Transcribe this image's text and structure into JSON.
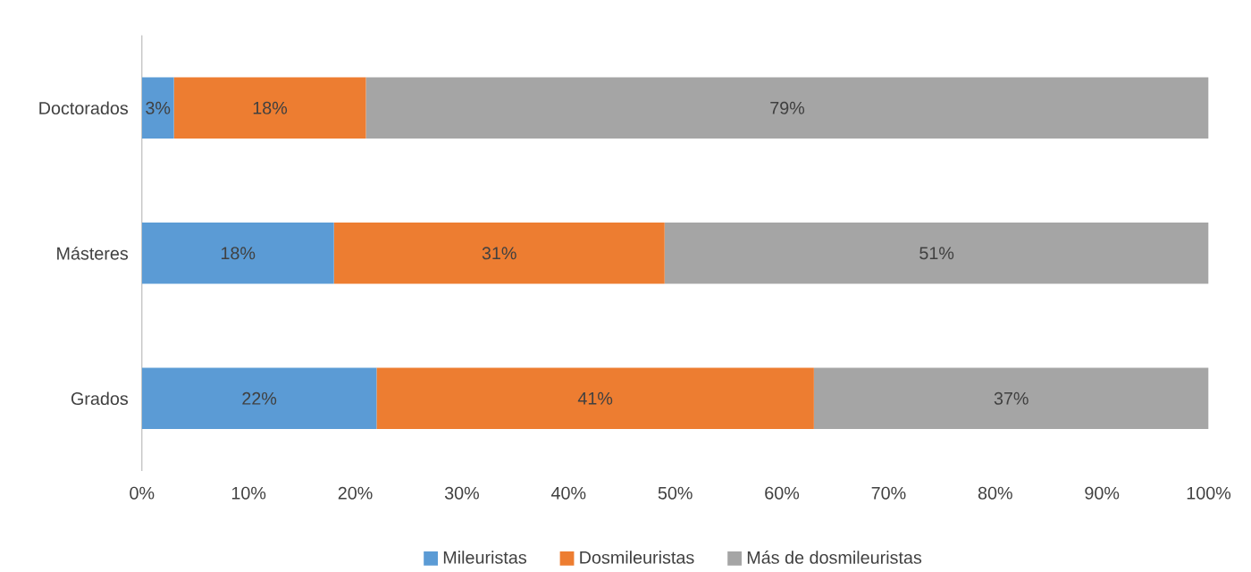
{
  "chart_data": {
    "type": "bar",
    "orientation": "horizontal",
    "stacked": true,
    "categories": [
      "Doctorados",
      "Másteres",
      "Grados"
    ],
    "series": [
      {
        "name": "Mileuristas",
        "color": "#5b9bd5",
        "values": [
          3,
          18,
          22
        ],
        "value_labels": [
          "3%",
          "18%",
          "22%"
        ]
      },
      {
        "name": "Dosmileuristas",
        "color": "#ed7d31",
        "values": [
          18,
          31,
          41
        ],
        "value_labels": [
          "18%",
          "31%",
          "41%"
        ]
      },
      {
        "name": "Más de dosmileuristas",
        "color": "#a5a5a5",
        "values": [
          79,
          51,
          37
        ],
        "value_labels": [
          "79%",
          "51%",
          "37%"
        ]
      }
    ],
    "xlim": [
      0,
      100
    ],
    "xticks": [
      {
        "value": 0,
        "label": "0%"
      },
      {
        "value": 10,
        "label": "10%"
      },
      {
        "value": 20,
        "label": "20%"
      },
      {
        "value": 30,
        "label": "30%"
      },
      {
        "value": 40,
        "label": "40%"
      },
      {
        "value": 50,
        "label": "50%"
      },
      {
        "value": 60,
        "label": "60%"
      },
      {
        "value": 70,
        "label": "70%"
      },
      {
        "value": 80,
        "label": "80%"
      },
      {
        "value": 90,
        "label": "90%"
      },
      {
        "value": 100,
        "label": "100%"
      }
    ],
    "legend": "bottom"
  }
}
